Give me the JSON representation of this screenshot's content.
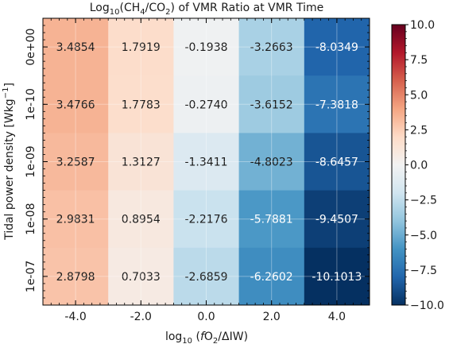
{
  "chart_data": {
    "type": "heatmap",
    "title_parts": {
      "pre": "Log",
      "sub": "10",
      "mid1": "(CH",
      "sub2": "4",
      "mid2": "/CO",
      "sub3": "2",
      "post": ") of VMR Ratio at VMR Time"
    },
    "xlabel_parts": {
      "pre": "log",
      "sub": "10",
      "mid": " (",
      "italic": "f",
      "mid2": "O",
      "sub2": "2",
      "post": "/ΔIW)"
    },
    "ylabel_parts": {
      "pre": "Tidal power density [Wkg",
      "sup": "−1",
      "post": "]"
    },
    "x_categories": [
      "-4.0",
      "-2.0",
      "0.0",
      "2.0",
      "4.0"
    ],
    "y_categories": [
      "0e+00",
      "1e-10",
      "1e-09",
      "1e-08",
      "1e-07"
    ],
    "values": [
      [
        3.4854,
        1.7919,
        -0.1938,
        -3.2663,
        -8.0349
      ],
      [
        3.4766,
        1.7783,
        -0.274,
        -3.6152,
        -7.3818
      ],
      [
        3.2587,
        1.3127,
        -1.3411,
        -4.8023,
        -8.6457
      ],
      [
        2.9831,
        0.8954,
        -2.2176,
        -5.7881,
        -9.4507
      ],
      [
        2.8798,
        0.7033,
        -2.6859,
        -6.2602,
        -10.1013
      ]
    ],
    "value_labels": [
      [
        "3.4854",
        "1.7919",
        "-0.1938",
        "-3.2663",
        "-8.0349"
      ],
      [
        "3.4766",
        "1.7783",
        "-0.2740",
        "-3.6152",
        "-7.3818"
      ],
      [
        "3.2587",
        "1.3127",
        "-1.3411",
        "-4.8023",
        "-8.6457"
      ],
      [
        "2.9831",
        "0.8954",
        "-2.2176",
        "-5.7881",
        "-9.4507"
      ],
      [
        "2.8798",
        "0.7033",
        "-2.6859",
        "-6.2602",
        "-10.1013"
      ]
    ],
    "x_tick_labels": [
      "-4.0",
      "-2.0",
      "0.0",
      "2.0",
      "4.0"
    ],
    "colorbar": {
      "colormap": "RdBu_r",
      "vmin": -10.0,
      "vmax": 10.0,
      "ticks": [
        10.0,
        7.5,
        5.0,
        2.5,
        0.0,
        -2.5,
        -5.0,
        -7.5,
        -10.0
      ],
      "tick_labels": [
        "10.0",
        "7.5",
        "5.0",
        "2.5",
        "0.0",
        "−2.5",
        "−5.0",
        "−7.5",
        "−10.0"
      ]
    },
    "grid": true
  }
}
